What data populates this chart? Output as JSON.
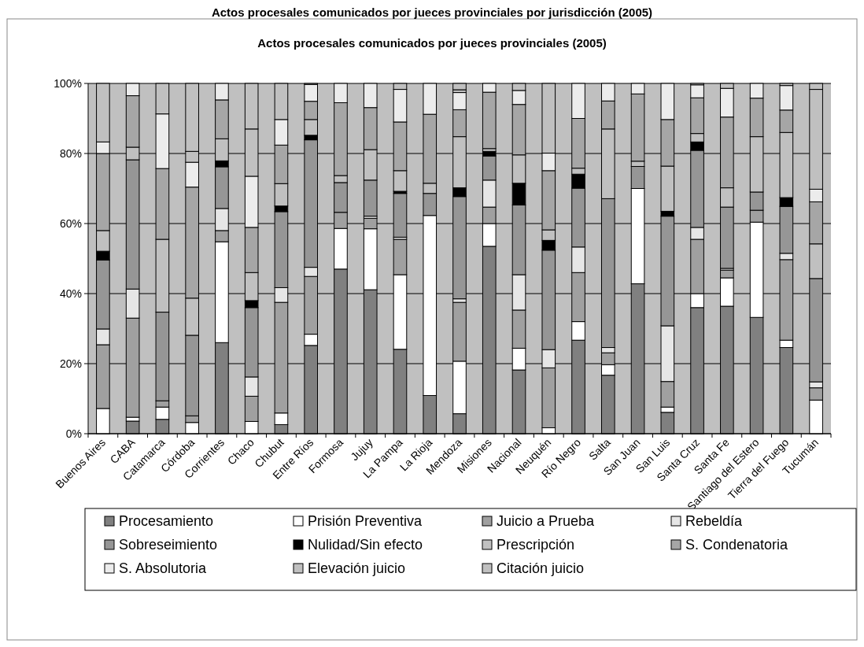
{
  "chart_data": {
    "type": "bar",
    "stacked": true,
    "title": "Actos procesales comunicados por jueces provinciales por jurisdicción (2005)",
    "subtitle": "Actos procesales comunicados por jueces provinciales (2005)",
    "categories": [
      "Buenos Aires",
      "CABA",
      "Catamarca",
      "Córdoba",
      "Corrientes",
      "Chaco",
      "Chubut",
      "Entre Ríos",
      "Formosa",
      "Jujuy",
      "La Pampa",
      "La Rioja",
      "Mendoza",
      "Misiones",
      "Nacional",
      "Neuquén",
      "Río Negro",
      "Salta",
      "San Juan",
      "San Luis",
      "Santa Cruz",
      "Santa Fe",
      "Santiago del Estero",
      "Tierra del Fuego",
      "Tucumán"
    ],
    "series": [
      {
        "name": "Procesamiento",
        "color": "#808080",
        "values": [
          0,
          3.6,
          4.1,
          0,
          26.0,
          0,
          2.6,
          25.2,
          47.0,
          41.1,
          24.1,
          10.9,
          5.7,
          53.5,
          18.2,
          0,
          26.7,
          16.7,
          42.8,
          6.1,
          36.0,
          36.4,
          33.2,
          24.6,
          0
        ]
      },
      {
        "name": "Prisión Preventiva",
        "color": "#ffffff",
        "values": [
          7.2,
          1.1,
          3.5,
          3.2,
          28.8,
          3.5,
          3.3,
          3.2,
          11.6,
          17.4,
          21.3,
          51.4,
          15.0,
          6.5,
          6.2,
          1.7,
          5.3,
          3.0,
          27.2,
          1.5,
          4.0,
          8.1,
          27.2,
          2.1,
          9.6
        ]
      },
      {
        "name": "Juicio a Prueba",
        "color": "#a0a0a0",
        "values": [
          18.2,
          28.3,
          1.8,
          1.9,
          3.2,
          7.2,
          31.6,
          16.5,
          4.6,
          3.0,
          10.1,
          0,
          16.8,
          4.7,
          10.9,
          17.1,
          14.0,
          3.4,
          0,
          7.3,
          15.5,
          2.2,
          3.4,
          23.0,
          3.5
        ]
      },
      {
        "name": "Rebeldía",
        "color": "#e6e6e6",
        "values": [
          4.5,
          8.3,
          0,
          0,
          6.3,
          5.5,
          4.2,
          2.6,
          0,
          0.6,
          0.6,
          0,
          1.0,
          7.7,
          10.1,
          5.2,
          7.3,
          1.5,
          0,
          15.9,
          3.4,
          0.5,
          0,
          1.8,
          1.7
        ]
      },
      {
        "name": "Sobreseimiento",
        "color": "#969696",
        "values": [
          19.7,
          36.9,
          25.3,
          23.0,
          11.9,
          19.8,
          21.7,
          36.4,
          8.5,
          10.3,
          12.5,
          6.3,
          29.2,
          6.9,
          19.9,
          28.4,
          16.8,
          42.5,
          6.3,
          31.3,
          22.0,
          17.5,
          5.2,
          13.4,
          29.5
        ]
      },
      {
        "name": "Nulidad/Sin efecto",
        "color": "#000000",
        "values": [
          2.5,
          0,
          0,
          0,
          1.7,
          2.0,
          1.6,
          1.3,
          0,
          0,
          0.6,
          0,
          2.5,
          1.3,
          6.2,
          2.8,
          4.0,
          0,
          0,
          1.4,
          2.4,
          0,
          0,
          2.5,
          0
        ]
      },
      {
        "name": "Prescripción",
        "color": "#c0c0c0",
        "values": [
          5.9,
          3.6,
          20.8,
          10.6,
          6.3,
          8.0,
          6.4,
          4.5,
          2.0,
          8.7,
          5.9,
          2.9,
          14.6,
          0.8,
          8.1,
          3.0,
          1.7,
          19.9,
          1.5,
          12.9,
          2.4,
          5.5,
          15.8,
          18.6,
          9.9
        ]
      },
      {
        "name": "S. Condenatoria",
        "color": "#a6a6a6",
        "values": [
          22.0,
          14.7,
          20.2,
          31.7,
          11.1,
          12.9,
          11.0,
          5.2,
          20.8,
          12.0,
          13.9,
          19.7,
          7.7,
          16.1,
          14.4,
          16.9,
          14.2,
          8.0,
          19.2,
          13.3,
          10.2,
          20.2,
          11.0,
          6.4,
          12.0
        ]
      },
      {
        "name": "S. Absolutoria",
        "color": "#ececec",
        "values": [
          3.3,
          3.5,
          15.6,
          7.1,
          4.7,
          14.6,
          7.3,
          4.8,
          5.5,
          6.9,
          9.3,
          8.8,
          4.9,
          2.5,
          4.0,
          5.0,
          10.0,
          5.0,
          3.0,
          10.3,
          3.7,
          8.2,
          4.2,
          7.0,
          3.6
        ]
      },
      {
        "name": "Elevación juicio",
        "color": "#c0c0c0",
        "values": [
          16.7,
          0,
          8.7,
          3.1,
          0,
          13.5,
          10.3,
          0.3,
          0,
          0,
          1.7,
          0,
          0.8,
          0,
          2.0,
          19.9,
          0,
          0,
          0,
          0,
          0.4,
          1.4,
          0,
          0.6,
          28.5
        ]
      },
      {
        "name": "Citación juicio",
        "color": "#c0c0c0",
        "values": [
          0,
          0,
          0,
          19.4,
          0,
          13.0,
          0,
          0,
          0,
          0,
          0,
          0,
          1.8,
          0,
          0,
          0,
          0,
          0,
          0,
          0,
          0,
          0,
          0,
          0,
          1.7
        ]
      }
    ],
    "ylim": [
      0,
      100
    ],
    "yticks": [
      {
        "value": 0,
        "label": "0%"
      },
      {
        "value": 20,
        "label": "20%"
      },
      {
        "value": 40,
        "label": "40%"
      },
      {
        "value": 60,
        "label": "60%"
      },
      {
        "value": 80,
        "label": "80%"
      },
      {
        "value": 100,
        "label": "100%"
      }
    ],
    "grid": "y",
    "legend": "bottom"
  }
}
